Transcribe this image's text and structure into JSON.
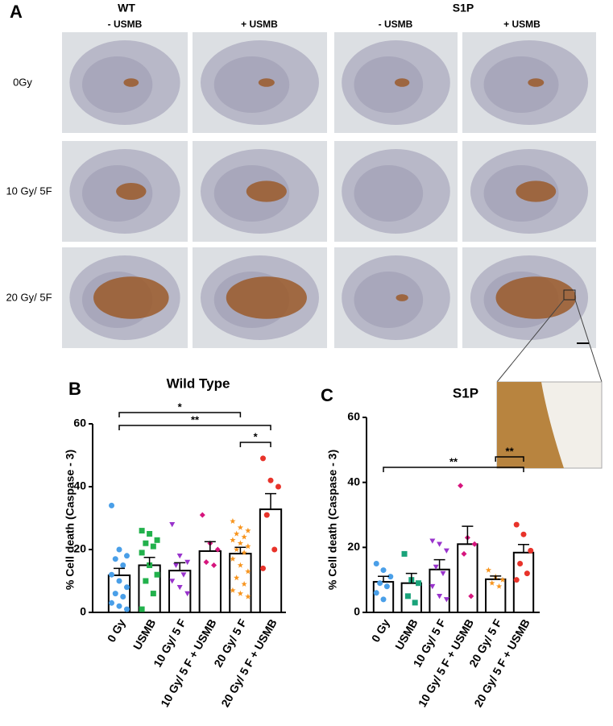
{
  "panel_a": {
    "label": "A",
    "groups": [
      "WT",
      "S1P"
    ],
    "columns": [
      "- USMB",
      "+ USMB",
      "- USMB",
      "+ USMB"
    ],
    "rows": [
      "0Gy",
      "10 Gy/ 5F",
      "20 Gy/ 5F"
    ]
  },
  "chart_data": [
    {
      "type": "bar",
      "panel_label": "B",
      "title": "Wild Type",
      "ylabel": "% Cell death  (Caspase - 3)",
      "categories": [
        "0 Gy",
        "USMB",
        "10 Gy/ 5 F",
        "10 Gy/ 5 F + USMB",
        "20 Gy/ 5 F",
        "20 Gy/ 5 F + USMB"
      ],
      "values": [
        11.8,
        15,
        13.3,
        19.5,
        18.7,
        32.8
      ],
      "errors": [
        2.2,
        2.5,
        2.5,
        3,
        2,
        5
      ],
      "points": [
        [
          34,
          20,
          18,
          17,
          15,
          12,
          10,
          8,
          6,
          5,
          3,
          2,
          1
        ],
        [
          26,
          25,
          23,
          22,
          21,
          19,
          15,
          12,
          10,
          6,
          1
        ],
        [
          28,
          18,
          16,
          15,
          12,
          10,
          8,
          6
        ],
        [
          31,
          22,
          20,
          16,
          15
        ],
        [
          29,
          27,
          26,
          25,
          24,
          23,
          22,
          21,
          20,
          19,
          17,
          15,
          13,
          11,
          9,
          7,
          6,
          5
        ],
        [
          49,
          42,
          40,
          31,
          20,
          14
        ]
      ],
      "colors": [
        "#4a9fe8",
        "#22b14c",
        "#9933cc",
        "#d6157d",
        "#f7941d",
        "#e8332a"
      ],
      "markers": [
        "circle",
        "square",
        "triangle-down",
        "diamond",
        "star",
        "circle"
      ],
      "significance": [
        {
          "label": "*",
          "from": "0 Gy",
          "to": "20 Gy/ 5 F"
        },
        {
          "label": "**",
          "from": "0 Gy",
          "to": "20 Gy/ 5 F + USMB"
        },
        {
          "label": "*",
          "from": "20 Gy/ 5 F",
          "to": "20 Gy/ 5 F + USMB"
        }
      ],
      "ylim": [
        0,
        60
      ],
      "yticks": [
        0,
        20,
        40,
        60
      ]
    },
    {
      "type": "bar",
      "panel_label": "C",
      "title": "S1P",
      "ylabel": "% Cell death  (Caspase - 3)",
      "categories": [
        "0 Gy",
        "USMB",
        "10 Gy/ 5 F",
        "10 Gy/ 5 F + USMB",
        "20 Gy/ 5 F",
        "20 Gy/ 5 F + USMB"
      ],
      "values": [
        9.4,
        9,
        13.2,
        21,
        10.2,
        18.4
      ],
      "errors": [
        1.7,
        3,
        3,
        5.5,
        1,
        2.5
      ],
      "points": [
        [
          15,
          13,
          11,
          9,
          8,
          6,
          4
        ],
        [
          18,
          10,
          9,
          5,
          3
        ],
        [
          22,
          21,
          19,
          14,
          12,
          8,
          5,
          4
        ],
        [
          39,
          23,
          21,
          18,
          5
        ],
        [
          13,
          11,
          10,
          9,
          8
        ],
        [
          27,
          24,
          19,
          15,
          12,
          10
        ]
      ],
      "colors": [
        "#4a9fe8",
        "#1aa37a",
        "#9933cc",
        "#d6157d",
        "#f7941d",
        "#e8332a"
      ],
      "markers": [
        "circle",
        "square",
        "triangle-down",
        "diamond",
        "star",
        "circle"
      ],
      "significance": [
        {
          "label": "**",
          "from": "0 Gy",
          "to": "20 Gy/ 5 F + USMB"
        },
        {
          "label": "**",
          "from": "20 Gy/ 5 F",
          "to": "20 Gy/ 5 F + USMB"
        }
      ],
      "ylim": [
        0,
        60
      ],
      "yticks": [
        0,
        20,
        40,
        60
      ]
    }
  ]
}
